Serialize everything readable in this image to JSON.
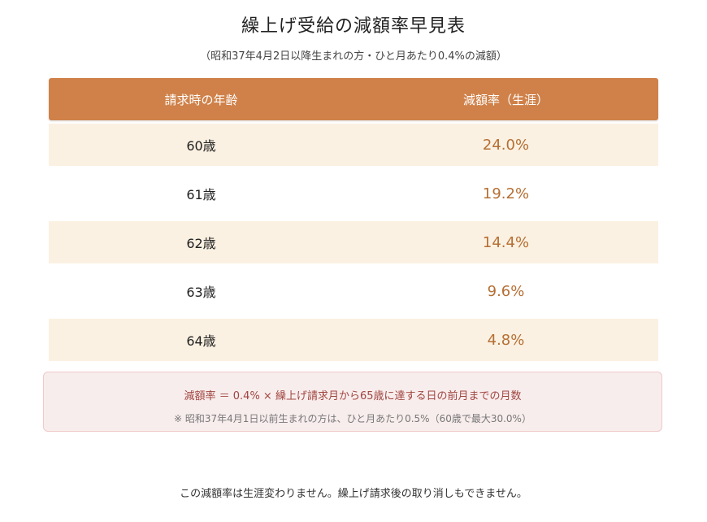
{
  "title": "繰上げ受給の減額率早見表",
  "subtitle": "（昭和37年4月2日以降生まれの方・ひと月あたり0.4%の減額）",
  "table": {
    "headers": {
      "age": "請求時の年齢",
      "rate": "減額率（生涯）"
    },
    "rows": [
      {
        "age": "60歳",
        "rate": "24.0%"
      },
      {
        "age": "61歳",
        "rate": "19.2%"
      },
      {
        "age": "62歳",
        "rate": "14.4%"
      },
      {
        "age": "63歳",
        "rate": "9.6%"
      },
      {
        "age": "64歳",
        "rate": "4.8%"
      }
    ]
  },
  "note": {
    "formula": "減額率 ＝ 0.4% × 繰上げ請求月から65歳に達する日の前月までの月数",
    "supplement": "※ 昭和37年4月1日以前生まれの方は、ひと月あたり0.5%（60歳で最大30.0%）"
  },
  "footer": "この減額率は生涯変わりません。繰上げ請求後の取り消しもできません。",
  "colors": {
    "header_bg": "#cf8149",
    "row_shade": "#fbf1e2",
    "rate_text": "#b56f34",
    "note_bg": "#f8eded",
    "note_text": "#a0453f"
  }
}
